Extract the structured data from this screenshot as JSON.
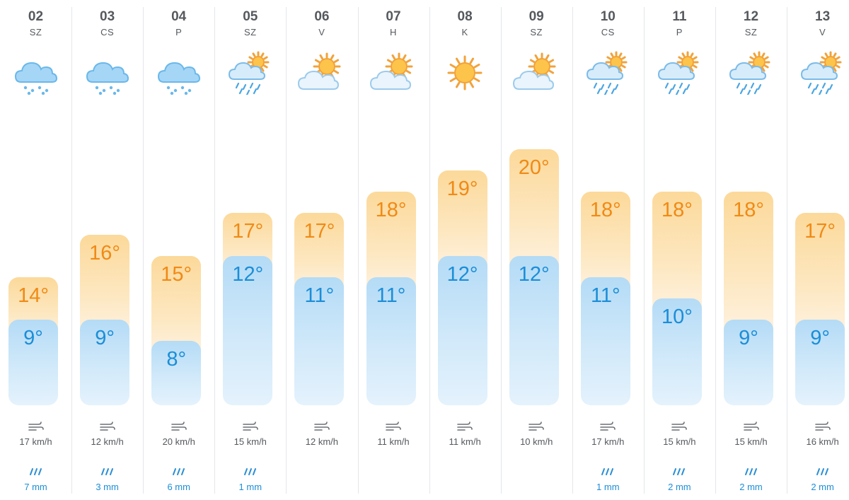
{
  "scale": {
    "min_temp": 8,
    "max_temp": 20
  },
  "colors": {
    "max_text": "#f08a15",
    "min_text": "#1b8ed8",
    "label_text": "#55595e",
    "separator": "#e3e6ea"
  },
  "days": [
    {
      "date": "02",
      "dow": "SZ",
      "icon": "rain-cloud-icon",
      "max": "14°",
      "max_value": 14,
      "min": "9°",
      "min_value": 9,
      "wind": "17 km/h",
      "rain": "7 mm"
    },
    {
      "date": "03",
      "dow": "CS",
      "icon": "rain-cloud-icon",
      "max": "16°",
      "max_value": 16,
      "min": "9°",
      "min_value": 9,
      "wind": "12 km/h",
      "rain": "3 mm"
    },
    {
      "date": "04",
      "dow": "P",
      "icon": "rain-cloud-icon",
      "max": "15°",
      "max_value": 15,
      "min": "8°",
      "min_value": 8,
      "wind": "20 km/h",
      "rain": "6 mm"
    },
    {
      "date": "05",
      "dow": "SZ",
      "icon": "sun-rain-icon",
      "max": "17°",
      "max_value": 17,
      "min": "12°",
      "min_value": 12,
      "wind": "15 km/h",
      "rain": "1 mm"
    },
    {
      "date": "06",
      "dow": "V",
      "icon": "partly-cloudy-icon",
      "max": "17°",
      "max_value": 17,
      "min": "11°",
      "min_value": 11,
      "wind": "12 km/h",
      "rain": ""
    },
    {
      "date": "07",
      "dow": "H",
      "icon": "partly-cloudy-icon",
      "max": "18°",
      "max_value": 18,
      "min": "11°",
      "min_value": 11,
      "wind": "11 km/h",
      "rain": ""
    },
    {
      "date": "08",
      "dow": "K",
      "icon": "sun-icon",
      "max": "19°",
      "max_value": 19,
      "min": "12°",
      "min_value": 12,
      "wind": "11 km/h",
      "rain": ""
    },
    {
      "date": "09",
      "dow": "SZ",
      "icon": "partly-cloudy-icon",
      "max": "20°",
      "max_value": 20,
      "min": "12°",
      "min_value": 12,
      "wind": "10 km/h",
      "rain": ""
    },
    {
      "date": "10",
      "dow": "CS",
      "icon": "sun-rain-icon",
      "max": "18°",
      "max_value": 18,
      "min": "11°",
      "min_value": 11,
      "wind": "17 km/h",
      "rain": "1 mm"
    },
    {
      "date": "11",
      "dow": "P",
      "icon": "sun-rain-icon",
      "max": "18°",
      "max_value": 18,
      "min": "10°",
      "min_value": 10,
      "wind": "15 km/h",
      "rain": "2 mm"
    },
    {
      "date": "12",
      "dow": "SZ",
      "icon": "sun-rain-icon",
      "max": "18°",
      "max_value": 18,
      "min": "9°",
      "min_value": 9,
      "wind": "15 km/h",
      "rain": "2 mm"
    },
    {
      "date": "13",
      "dow": "V",
      "icon": "sun-rain-icon",
      "max": "17°",
      "max_value": 17,
      "min": "9°",
      "min_value": 9,
      "wind": "16 km/h",
      "rain": "2 mm"
    }
  ]
}
